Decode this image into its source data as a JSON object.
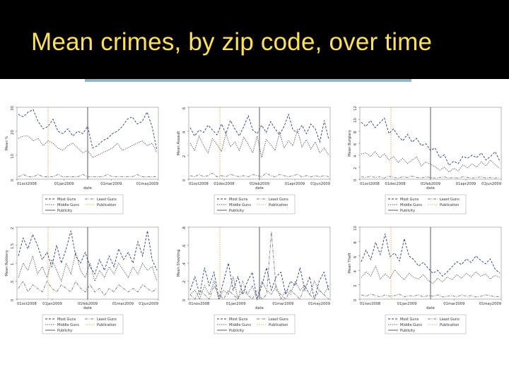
{
  "slide": {
    "title": "Mean crimes, by zip code, over time"
  },
  "colors": {
    "title_bar": "#000000",
    "title_text": "#ffe24a",
    "underline": "#8fb5c9",
    "most_guns": "#1f3b8c",
    "least_guns": "#7a7a7a",
    "middle_guns": "#444444",
    "publication": "#e0a030",
    "publicity": "#2a3340"
  },
  "chart_data": [
    {
      "type": "line",
      "ylabel": "Mean %",
      "xlabel": "date",
      "ylim": [
        0,
        30
      ],
      "yticks": [
        "0",
        "10",
        "20",
        "30"
      ],
      "xticks": [
        "01oct2008",
        "01jan2009",
        "01mar2009",
        "01may2009"
      ],
      "legend": [
        "Most Guns",
        "Least Guns",
        "Middle Guns",
        "Publication",
        "Publicity"
      ],
      "series": [
        {
          "name": "Most Guns",
          "values": [
            27,
            26,
            28,
            29,
            24,
            21,
            22,
            25,
            20,
            19,
            21,
            18,
            20,
            19,
            22,
            13,
            14,
            16,
            17,
            19,
            20,
            22,
            25,
            26,
            23,
            24,
            28,
            22,
            12
          ]
        },
        {
          "name": "Middle Guns",
          "values": [
            17,
            18,
            18,
            16,
            17,
            14,
            16,
            15,
            13,
            12,
            14,
            15,
            13,
            11,
            12,
            9,
            10,
            11,
            12,
            13,
            15,
            12,
            13,
            14,
            15,
            16,
            14,
            15,
            11
          ]
        },
        {
          "name": "Least Guns",
          "values": [
            1,
            2,
            1,
            1,
            2,
            1,
            1,
            1,
            2,
            1,
            1,
            1,
            1,
            2,
            1,
            1,
            1,
            1,
            2,
            1,
            1,
            1,
            1,
            1,
            2,
            1,
            1,
            1,
            1
          ]
        }
      ]
    },
    {
      "type": "line",
      "ylabel": "Mean Assault",
      "xlabel": "date",
      "ylim": [
        0,
        6
      ],
      "yticks": [
        "0",
        "2",
        "4",
        "6"
      ],
      "xticks": [
        "01oct2008",
        "01dec2008",
        "01feb2009",
        "01apr2009",
        "01jun2009"
      ],
      "legend": [
        "Most Guns",
        "Least Guns",
        "Middle Guns",
        "Publication",
        "Publicity"
      ],
      "series": [
        {
          "name": "Most Guns",
          "values": [
            4.3,
            3.6,
            4.1,
            3.9,
            4.5,
            4.1,
            3.7,
            4.6,
            3.8,
            4.9,
            4.2,
            3.6,
            4.4,
            5.3,
            4.1,
            3.8,
            4.5,
            3.9,
            4.8,
            4.2,
            3.7,
            4.4,
            5.4,
            4.1,
            3.9,
            4.5,
            3.8,
            4.6,
            4.2,
            3.1,
            4.9,
            3.3
          ]
        },
        {
          "name": "Middle Guns",
          "values": [
            3.0,
            2.4,
            3.6,
            2.8,
            2.2,
            3.4,
            2.9,
            2.3,
            3.8,
            2.7,
            3.1,
            2.4,
            3.5,
            2.9,
            2.2,
            3.6,
            1.8,
            3.3,
            2.9,
            2.4,
            3.9,
            2.6,
            3.2,
            2.8,
            4.1,
            2.7,
            3.3,
            2.5,
            3.1,
            2.2,
            2.6,
            2.0
          ]
        },
        {
          "name": "Least Guns",
          "values": [
            0.3,
            0.2,
            0.4,
            0.2,
            0.3,
            0.5,
            0.2,
            0.3,
            0.2,
            0.4,
            0.3,
            0.2,
            0.3,
            0.2,
            0.4,
            0.3,
            0.2,
            0.5,
            0.3,
            0.2,
            0.4,
            0.3,
            0.2,
            0.3,
            0.4,
            0.2,
            0.3,
            0.2,
            0.3,
            0.2,
            0.3,
            0.2
          ]
        }
      ]
    },
    {
      "type": "line",
      "ylabel": "Mean Burglary",
      "xlabel": "date",
      "ylim": [
        0,
        12
      ],
      "yticks": [
        "0",
        "2",
        "4",
        "6",
        "8",
        "10",
        "12"
      ],
      "xticks": [
        "01oct2008",
        "01dec2008",
        "01feb2009",
        "01apr2009",
        "01jun2009"
      ],
      "legend": [
        "Most Guns",
        "Least Guns",
        "Middle Guns",
        "Publication",
        "Publicity"
      ],
      "series": [
        {
          "name": "Most Guns",
          "values": [
            9.5,
            8.8,
            9.8,
            8.6,
            9.4,
            10.2,
            7.6,
            8.4,
            7.2,
            6.4,
            7.5,
            6.2,
            6.8,
            5.6,
            5.9,
            4.8,
            5.2,
            3.6,
            4.1,
            2.3,
            3.0,
            2.6,
            3.8,
            3.5,
            4.0,
            3.6,
            4.4,
            3.2,
            3.8,
            4.6,
            3.0
          ]
        },
        {
          "name": "Middle Guns",
          "values": [
            4.2,
            4.4,
            3.8,
            4.6,
            3.6,
            4.2,
            3.2,
            3.8,
            2.8,
            3.5,
            2.6,
            3.2,
            3.7,
            2.2,
            2.9,
            2.5,
            2.1,
            1.5,
            2.0,
            1.2,
            1.8,
            1.4,
            2.4,
            1.9,
            2.6,
            2.0,
            2.9,
            2.2,
            3.2,
            2.4,
            1.8
          ]
        },
        {
          "name": "Least Guns",
          "values": [
            0.4,
            0.3,
            0.5,
            0.3,
            0.4,
            0.2,
            0.5,
            0.3,
            0.2,
            0.4,
            0.3,
            0.5,
            0.3,
            0.2,
            0.4,
            0.3,
            0.2,
            0.3,
            0.4,
            0.2,
            0.3,
            0.2,
            0.4,
            0.3,
            0.2,
            0.3,
            0.4,
            0.2,
            0.3,
            0.2,
            0.3
          ]
        }
      ]
    },
    {
      "type": "line",
      "ylabel": "Mean Robbery",
      "xlabel": "date",
      "ylim": [
        0,
        2
      ],
      "yticks": [
        "0",
        ".5",
        "1",
        "1.5",
        "2"
      ],
      "xticks": [
        "01oct2008",
        "01jan2009",
        "01feb2009",
        "01mar2009",
        "01jun2009"
      ],
      "legend": [
        "Most Guns",
        "Least Guns",
        "Middle Guns",
        "Publication",
        "Publicity"
      ],
      "series": [
        {
          "name": "Most Guns",
          "values": [
            1.2,
            1.7,
            1.4,
            1.8,
            1.5,
            1.1,
            1.3,
            0.9,
            1.5,
            1.0,
            1.4,
            1.9,
            1.2,
            1.0,
            1.3,
            0.9,
            0.7,
            1.1,
            0.8,
            1.2,
            0.9,
            1.4,
            1.1,
            1.3,
            1.0,
            1.6,
            1.2,
            1.9,
            1.1,
            0.8
          ]
        },
        {
          "name": "Middle Guns",
          "values": [
            0.6,
            1.0,
            0.8,
            1.2,
            0.7,
            0.9,
            0.6,
            1.1,
            0.8,
            0.5,
            1.0,
            0.7,
            1.3,
            0.8,
            0.6,
            1.0,
            0.5,
            0.8,
            0.6,
            0.9,
            0.7,
            1.0,
            0.8,
            0.6,
            0.9,
            0.7,
            1.0,
            0.8,
            0.9,
            0.5
          ]
        },
        {
          "name": "Least Guns",
          "values": [
            0.3,
            0.5,
            0.2,
            0.4,
            0.3,
            0.2,
            0.5,
            0.3,
            0.2,
            0.4,
            0.3,
            0.2,
            0.5,
            0.3,
            0.2,
            0.4,
            0.2,
            0.3,
            0.1,
            0.3,
            0.2,
            0.4,
            0.3,
            0.2,
            0.3,
            0.2,
            0.4,
            0.3,
            0.2,
            0.3
          ]
        }
      ]
    },
    {
      "type": "line",
      "ylabel": "Mean Shooting",
      "xlabel": "date",
      "ylim": [
        0,
        0.8
      ],
      "yticks": [
        "0",
        ".2",
        ".4",
        ".6",
        ".8"
      ],
      "xticks": [
        "01nov2008",
        "01jan2009",
        "01mar2009",
        "01may2009"
      ],
      "legend": [
        "Most Guns",
        "Least Guns",
        "Middle Guns",
        "Publication",
        "Publicity"
      ],
      "series": [
        {
          "name": "Most Guns",
          "values": [
            0.1,
            0.25,
            0.05,
            0.35,
            0.15,
            0.3,
            0.0,
            0.2,
            0.4,
            0.1,
            0.25,
            0.05,
            0.2,
            0.3,
            0.0,
            0.15,
            0.35,
            0.1,
            0.25,
            0.3,
            0.05,
            0.2,
            0.15,
            0.35,
            0.1,
            0.25,
            0.0,
            0.2,
            0.3,
            0.1
          ]
        },
        {
          "name": "Middle Guns",
          "values": [
            0.05,
            0.1,
            0.0,
            0.15,
            0.05,
            0.2,
            0.0,
            0.1,
            0.05,
            0.25,
            0.0,
            0.1,
            0.05,
            0.15,
            0.0,
            0.2,
            0.1,
            0.05,
            0.15,
            0.0,
            0.1,
            0.05,
            0.2,
            0.1,
            0.15,
            0.05,
            0.2,
            0.1,
            0.05,
            0.15
          ]
        },
        {
          "name": "Least Guns",
          "values": [
            0.05,
            0.0,
            0.1,
            0.05,
            0.0,
            0.15,
            0.05,
            0.0,
            0.1,
            0.05,
            0.0,
            0.2,
            0.05,
            0.0,
            0.1,
            0.0,
            0.05,
            0.75,
            0.1,
            0.05,
            0.0,
            0.1,
            0.05,
            0.0,
            0.15,
            0.05,
            0.0,
            0.1,
            0.05,
            0.0
          ]
        }
      ]
    },
    {
      "type": "line",
      "ylabel": "Mean Theft",
      "xlabel": "date",
      "ylim": [
        0,
        10
      ],
      "yticks": [
        "0",
        "2",
        "4",
        "6",
        "8",
        "10"
      ],
      "xticks": [
        "01nov2008",
        "01jan2009",
        "01mar2009",
        "01may2009"
      ],
      "legend": [
        "Most Guns",
        "Least Guns",
        "Middle Guns",
        "Publication",
        "Publicity"
      ],
      "series": [
        {
          "name": "Most Guns",
          "values": [
            5.2,
            6.8,
            5.5,
            7.9,
            6.2,
            9.1,
            5.9,
            6.4,
            5.3,
            8.4,
            6.0,
            5.5,
            4.6,
            5.1,
            4.3,
            3.6,
            4.0,
            3.2,
            3.8,
            4.5,
            5.2,
            4.8,
            5.6,
            5.1,
            6.0,
            5.4,
            4.9,
            5.6,
            4.2,
            3.6
          ]
        },
        {
          "name": "Middle Guns",
          "values": [
            3.0,
            3.8,
            3.2,
            4.6,
            2.8,
            3.5,
            2.9,
            4.1,
            3.3,
            2.7,
            3.6,
            3.0,
            2.8,
            3.4,
            2.6,
            2.2,
            2.9,
            2.4,
            3.1,
            2.7,
            3.4,
            2.9,
            3.6,
            3.1,
            3.8,
            3.2,
            3.5,
            2.8,
            3.3,
            3.0
          ]
        },
        {
          "name": "Least Guns",
          "values": [
            0.6,
            0.4,
            0.7,
            0.5,
            0.3,
            0.6,
            0.4,
            0.5,
            0.7,
            0.3,
            0.5,
            0.4,
            0.6,
            0.3,
            0.5,
            0.4,
            0.6,
            0.3,
            0.4,
            0.5,
            0.3,
            0.6,
            0.4,
            0.5,
            0.3,
            0.4,
            0.6,
            0.5,
            0.3,
            0.4
          ]
        }
      ]
    }
  ]
}
